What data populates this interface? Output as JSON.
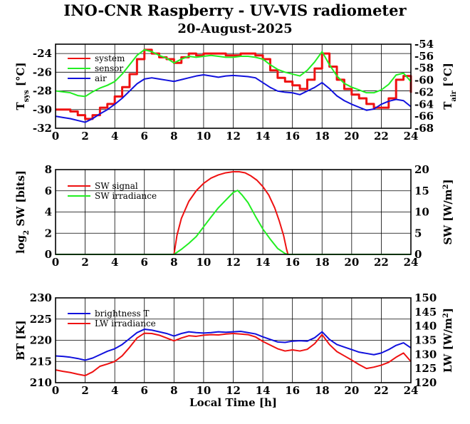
{
  "title": "INO-CNR Raspberry - UV-VIS radiometer",
  "date": "20-August-2025",
  "colors": {
    "red": "#ee1111",
    "green": "#22ee22",
    "blue": "#1111dd"
  },
  "chart_data": [
    {
      "type": "line",
      "panel": "temperatures",
      "xlim": [
        0,
        24
      ],
      "xticks": [
        0,
        2,
        4,
        6,
        8,
        10,
        12,
        14,
        16,
        18,
        20,
        22,
        24
      ],
      "ylabel_left": "T",
      "ylabel_left_sub": "sys",
      "ylabel_left_unit": "[°C]",
      "ylim_left": [
        -32,
        -23
      ],
      "yticks_left": [
        -24,
        -26,
        -28,
        -30,
        -32
      ],
      "ylabel_right": "T",
      "ylabel_right_sub": "air",
      "ylabel_right_unit": "[°C]",
      "ylim_right": [
        -68,
        -54
      ],
      "yticks_right": [
        -54,
        -56,
        -58,
        -60,
        -62,
        -64,
        -66,
        -68
      ],
      "grid": true,
      "legend": "top-left",
      "series": [
        {
          "name": "system",
          "color": "#ee1111",
          "axis": "left",
          "style": "steps",
          "x": [
            0,
            0.5,
            1,
            1.5,
            2,
            2.5,
            3,
            3.5,
            4,
            4.5,
            5,
            5.5,
            6,
            6.5,
            7,
            7.5,
            8,
            8.5,
            9,
            9.5,
            10,
            10.5,
            11,
            11.5,
            12,
            12.5,
            13,
            13.5,
            14,
            14.5,
            15,
            15.5,
            16,
            16.5,
            17,
            17.5,
            18,
            18.5,
            19,
            19.5,
            20,
            20.5,
            21,
            21.5,
            22,
            22.5,
            23,
            23.5,
            24
          ],
          "y": [
            -30.0,
            -30.0,
            -30.2,
            -30.6,
            -31.0,
            -30.6,
            -29.8,
            -29.4,
            -28.6,
            -27.6,
            -26.2,
            -24.6,
            -23.6,
            -24.0,
            -24.4,
            -24.6,
            -25.0,
            -24.4,
            -24.0,
            -24.2,
            -24.0,
            -24.0,
            -24.0,
            -24.2,
            -24.2,
            -24.0,
            -24.0,
            -24.2,
            -24.6,
            -25.8,
            -26.6,
            -27.0,
            -27.4,
            -27.8,
            -26.8,
            -25.6,
            -24.0,
            -25.4,
            -26.8,
            -27.8,
            -28.4,
            -28.8,
            -29.4,
            -29.8,
            -29.8,
            -28.8,
            -26.8,
            -26.4,
            -28.2
          ]
        },
        {
          "name": "sensor",
          "color": "#22ee22",
          "axis": "left",
          "style": "line",
          "x": [
            0,
            0.5,
            1,
            1.5,
            2,
            2.5,
            3,
            3.5,
            4,
            4.5,
            5,
            5.5,
            6,
            6.5,
            7,
            7.5,
            8,
            8.5,
            9,
            9.5,
            10,
            10.5,
            11,
            11.5,
            12,
            12.5,
            13,
            13.5,
            14,
            14.5,
            15,
            15.5,
            16,
            16.5,
            17,
            17.5,
            18,
            18.5,
            19,
            19.5,
            20,
            20.5,
            21,
            21.5,
            22,
            22.5,
            23,
            23.5,
            24
          ],
          "y": [
            -28.0,
            -28.1,
            -28.2,
            -28.5,
            -28.6,
            -28.1,
            -27.7,
            -27.4,
            -27.0,
            -26.2,
            -25.2,
            -24.2,
            -23.6,
            -23.8,
            -24.2,
            -24.5,
            -25.0,
            -24.6,
            -24.3,
            -24.4,
            -24.3,
            -24.2,
            -24.3,
            -24.4,
            -24.4,
            -24.3,
            -24.3,
            -24.4,
            -24.6,
            -25.2,
            -25.7,
            -26.0,
            -26.2,
            -26.4,
            -25.8,
            -24.9,
            -23.8,
            -25.2,
            -26.4,
            -27.2,
            -27.6,
            -27.9,
            -28.2,
            -28.2,
            -27.9,
            -27.3,
            -26.3,
            -26.1,
            -27.0
          ]
        },
        {
          "name": "air",
          "color": "#1111dd",
          "axis": "right",
          "style": "line",
          "x": [
            0,
            0.5,
            1,
            1.5,
            2,
            2.5,
            3,
            3.5,
            4,
            4.5,
            5,
            5.5,
            6,
            6.5,
            7,
            7.5,
            8,
            8.5,
            9,
            9.5,
            10,
            10.5,
            11,
            11.5,
            12,
            12.5,
            13,
            13.5,
            14,
            14.5,
            15,
            15.5,
            16,
            16.5,
            17,
            17.5,
            18,
            18.5,
            19,
            19.5,
            20,
            20.5,
            21,
            21.5,
            22,
            22.5,
            23,
            23.5,
            24
          ],
          "y": [
            -66.0,
            -66.2,
            -66.4,
            -66.7,
            -67.0,
            -66.4,
            -65.6,
            -64.9,
            -64.0,
            -63.0,
            -61.8,
            -60.6,
            -59.8,
            -59.6,
            -59.8,
            -60.0,
            -60.2,
            -59.9,
            -59.6,
            -59.3,
            -59.1,
            -59.3,
            -59.5,
            -59.3,
            -59.2,
            -59.3,
            -59.4,
            -59.6,
            -60.4,
            -61.2,
            -61.8,
            -62.0,
            -62.1,
            -62.4,
            -61.8,
            -61.2,
            -60.4,
            -61.4,
            -62.6,
            -63.4,
            -64.0,
            -64.5,
            -65.0,
            -64.8,
            -64.0,
            -63.5,
            -63.2,
            -63.4,
            -64.4
          ]
        }
      ]
    },
    {
      "type": "line",
      "panel": "shortwave",
      "xlim": [
        0,
        24
      ],
      "xticks": [
        0,
        2,
        4,
        6,
        8,
        10,
        12,
        14,
        16,
        18,
        20,
        22,
        24
      ],
      "ylabel_left": "log",
      "ylabel_left_sub": "2",
      "ylabel_left_unit": "SW [bits]",
      "ylim_left": [
        0,
        8
      ],
      "yticks_left": [
        0,
        2,
        4,
        6,
        8
      ],
      "ylabel_right": "SW [W/m",
      "ylabel_right_sup": "2",
      "ylabel_right_end": "]",
      "ylim_right": [
        0,
        20
      ],
      "yticks_right": [
        0,
        5,
        10,
        15,
        20
      ],
      "grid": true,
      "legend": "top-left",
      "series": [
        {
          "name": "SW signal",
          "color": "#ee1111",
          "axis": "left",
          "style": "line",
          "x": [
            0,
            8.0,
            8.2,
            8.5,
            9.0,
            9.5,
            10.0,
            10.5,
            11.0,
            11.5,
            12.0,
            12.4,
            12.8,
            13.2,
            13.6,
            14.0,
            14.4,
            14.8,
            15.1,
            15.4,
            15.6,
            15.7,
            24
          ],
          "y": [
            0,
            0,
            1.8,
            3.4,
            5.0,
            6.0,
            6.7,
            7.2,
            7.5,
            7.7,
            7.8,
            7.8,
            7.7,
            7.4,
            7.0,
            6.4,
            5.6,
            4.4,
            3.2,
            1.8,
            0.5,
            0,
            0
          ]
        },
        {
          "name": "SW irradiance",
          "color": "#22ee22",
          "axis": "right",
          "style": "line",
          "x": [
            0,
            8.0,
            8.5,
            9.0,
            9.5,
            10.0,
            10.5,
            11.0,
            11.5,
            12.0,
            12.3,
            12.6,
            13.0,
            13.5,
            14.0,
            14.5,
            15.0,
            15.5,
            15.7,
            24
          ],
          "y": [
            0,
            0,
            1.2,
            2.6,
            4.2,
            6.5,
            8.8,
            11.0,
            12.8,
            14.6,
            15.1,
            14.0,
            12.2,
            9.0,
            6.0,
            3.6,
            1.4,
            0.2,
            0,
            0
          ]
        }
      ]
    },
    {
      "type": "line",
      "panel": "longwave",
      "xlim": [
        0,
        24
      ],
      "xticks": [
        0,
        2,
        4,
        6,
        8,
        10,
        12,
        14,
        16,
        18,
        20,
        22,
        24
      ],
      "xlabel": "Local Time [h]",
      "ylabel_left": "BT [K]",
      "ylim_left": [
        210,
        230
      ],
      "yticks_left": [
        210,
        215,
        220,
        225,
        230
      ],
      "ylabel_right": "LW [W/m",
      "ylabel_right_sup": "2",
      "ylabel_right_end": "]",
      "ylim_right": [
        120,
        150
      ],
      "yticks_right": [
        120,
        125,
        130,
        135,
        140,
        145,
        150
      ],
      "grid": true,
      "legend": "top-left",
      "series": [
        {
          "name": "brightness T",
          "color": "#1111dd",
          "axis": "left",
          "style": "line",
          "x": [
            0,
            0.5,
            1,
            1.5,
            2,
            2.5,
            3,
            3.5,
            4,
            4.5,
            5,
            5.5,
            6,
            6.5,
            7,
            7.5,
            8,
            8.5,
            9,
            9.5,
            10,
            10.5,
            11,
            11.5,
            12,
            12.5,
            13,
            13.5,
            14,
            14.5,
            15,
            15.5,
            16,
            16.5,
            17,
            17.5,
            18,
            18.5,
            19,
            19.5,
            20,
            20.5,
            21,
            21.5,
            22,
            22.5,
            23,
            23.5,
            24
          ],
          "y": [
            216.3,
            216.2,
            216.0,
            215.7,
            215.3,
            215.8,
            216.6,
            217.4,
            218.0,
            219.0,
            220.4,
            221.8,
            222.6,
            222.4,
            222.0,
            221.6,
            221.0,
            221.6,
            222.0,
            221.8,
            221.7,
            221.8,
            222.0,
            221.9,
            222.0,
            222.1,
            221.8,
            221.5,
            220.8,
            220.2,
            219.6,
            219.5,
            219.8,
            219.9,
            219.8,
            220.6,
            222.0,
            220.2,
            219.0,
            218.4,
            217.8,
            217.2,
            216.9,
            216.6,
            217.0,
            217.8,
            218.8,
            219.4,
            218.2
          ]
        },
        {
          "name": "LW irradiance",
          "color": "#ee1111",
          "axis": "right",
          "style": "line",
          "x": [
            0,
            0.5,
            1,
            1.5,
            2,
            2.5,
            3,
            3.5,
            4,
            4.5,
            5,
            5.5,
            6,
            6.5,
            7,
            7.5,
            8,
            8.5,
            9,
            9.5,
            10,
            10.5,
            11,
            11.5,
            12,
            12.5,
            13,
            13.5,
            14,
            14.5,
            15,
            15.5,
            16,
            16.5,
            17,
            17.5,
            18,
            18.5,
            19,
            19.5,
            20,
            20.5,
            21,
            21.5,
            22,
            22.5,
            23,
            23.5,
            24
          ],
          "y": [
            124.5,
            124.0,
            123.6,
            123.0,
            122.5,
            123.8,
            125.8,
            126.6,
            127.5,
            129.5,
            132.5,
            135.8,
            137.5,
            137.4,
            136.8,
            135.8,
            134.8,
            135.8,
            136.6,
            136.4,
            136.8,
            137.0,
            136.9,
            137.2,
            137.4,
            137.2,
            137.0,
            136.2,
            134.6,
            133.3,
            132.0,
            131.2,
            131.6,
            131.2,
            131.8,
            133.8,
            137.0,
            133.5,
            131.0,
            129.5,
            128.0,
            126.4,
            125.0,
            125.5,
            126.2,
            127.2,
            129.0,
            130.5,
            127.5
          ]
        }
      ]
    }
  ]
}
